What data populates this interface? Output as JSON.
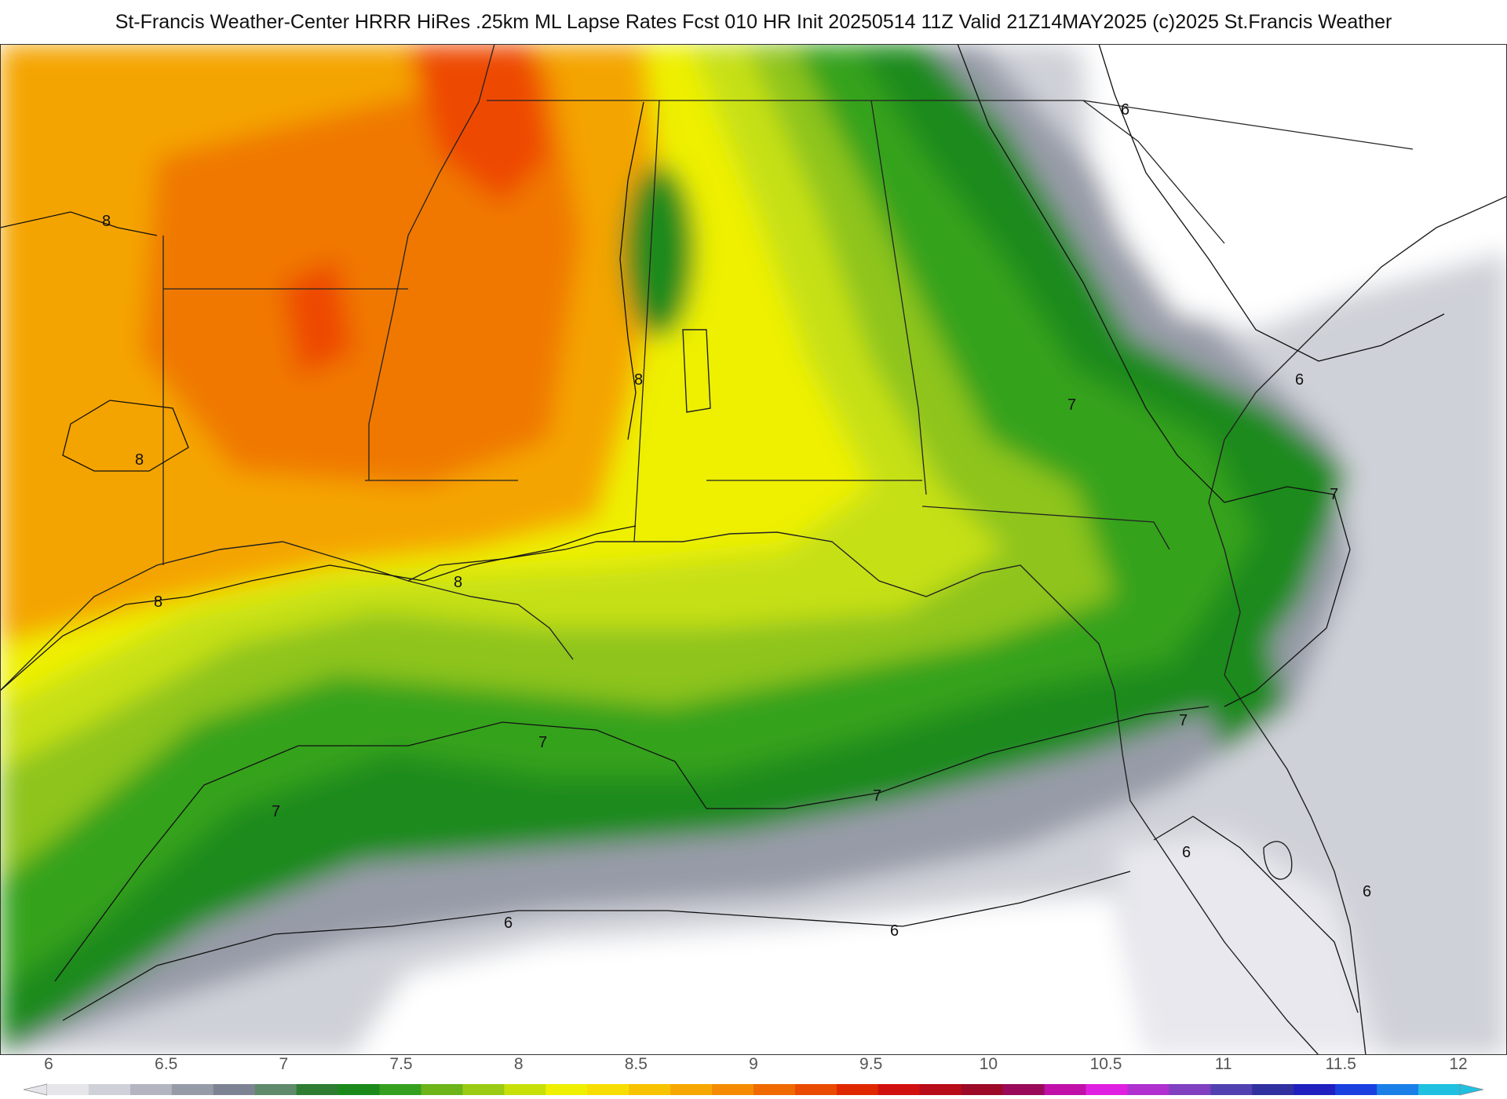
{
  "title": "St-Francis Weather-Center HRRR HiRes .25km ML Lapse Rates  Fcst 010 HR Init 20250514 11Z  Valid 21Z14MAY2025    (c)2025 St.Francis Weather",
  "legend": {
    "ticks": [
      "6",
      "6.5",
      "7",
      "7.5",
      "8",
      "8.5",
      "9",
      "9.5",
      "10",
      "10.5",
      "11",
      "11.5",
      "12"
    ],
    "colors": [
      "#e5e5ea",
      "#cfd1d8",
      "#b3b6c0",
      "#979ba7",
      "#7e8394",
      "#5f8a6c",
      "#2e7d32",
      "#1b8a1b",
      "#35a020",
      "#6cb41a",
      "#9acb12",
      "#c8e00a",
      "#eef000",
      "#f7de00",
      "#f8c300",
      "#f7a800",
      "#f48b00",
      "#f06a00",
      "#ea4a00",
      "#e02800",
      "#d11010",
      "#b80c18",
      "#9c0a28",
      "#9a0a5a",
      "#c010a8",
      "#e020e0",
      "#b030d0",
      "#8040c0",
      "#5040b0",
      "#3030a0",
      "#2020c0",
      "#1a40e0",
      "#1a80e8",
      "#20c0e0"
    ]
  },
  "contour_labels": [
    "8",
    "8",
    "8",
    "8",
    "8",
    "7",
    "7",
    "7",
    "7",
    "7",
    "7",
    "6",
    "6",
    "6",
    "6",
    "6",
    "6"
  ],
  "map_colors": {
    "orange": "#f4a400",
    "dark_orange": "#f07800",
    "red": "#ee4a00",
    "yellow": "#eef000",
    "yellow_green": "#c6e012",
    "light_green": "#8ec41c",
    "green": "#36a21e",
    "dark_green": "#1a8a1a",
    "blue_gray": "#7e8394",
    "light_gray": "#cfd1d8",
    "pale_gray": "#e8e8ee"
  }
}
